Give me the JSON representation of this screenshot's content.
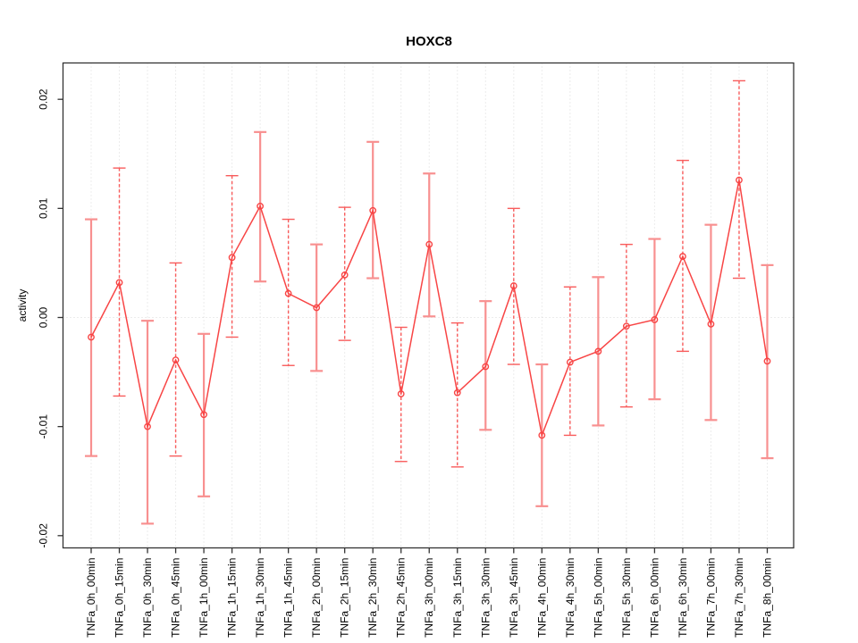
{
  "title": "HOXC8",
  "y_axis_label": "activity",
  "chart_data": {
    "type": "line",
    "subtype": "points-with-error-bars",
    "title": "HOXC8",
    "xlabel": "",
    "ylabel": "activity",
    "legend": "none",
    "grid": "vertical-dotted-at-each-category-plus-zero-line",
    "point_marker": "open-circle",
    "ylim": [
      -0.0212,
      0.0234
    ],
    "yticks": [
      {
        "value": -0.02,
        "label": "-0.02"
      },
      {
        "value": -0.01,
        "label": "-0.01"
      },
      {
        "value": 0.0,
        "label": "0.00"
      },
      {
        "value": 0.01,
        "label": "0.01"
      },
      {
        "value": 0.02,
        "label": "0.02"
      }
    ],
    "categories": [
      "TNFa_0h_00min",
      "TNFa_0h_15min",
      "TNFa_0h_30min",
      "TNFa_0h_45min",
      "TNFa_1h_00min",
      "TNFa_1h_15min",
      "TNFa_1h_30min",
      "TNFa_1h_45min",
      "TNFa_2h_00min",
      "TNFa_2h_15min",
      "TNFa_2h_30min",
      "TNFa_2h_45min",
      "TNFa_3h_00min",
      "TNFa_3h_15min",
      "TNFa_3h_30min",
      "TNFa_3h_45min",
      "TNFa_4h_00min",
      "TNFa_4h_30min",
      "TNFa_5h_00min",
      "TNFa_5h_30min",
      "TNFa_6h_00min",
      "TNFa_6h_30min",
      "TNFa_7h_00min",
      "TNFa_7h_30min",
      "TNFa_8h_00min"
    ],
    "values": [
      -0.0018,
      0.0032,
      -0.01,
      -0.0039,
      -0.0089,
      0.0055,
      0.0102,
      0.0022,
      0.0009,
      0.0039,
      0.0098,
      -0.007,
      0.0067,
      -0.0069,
      -0.0045,
      0.0029,
      -0.0108,
      -0.0041,
      -0.0031,
      -0.0008,
      -0.0002,
      0.0056,
      -0.0006,
      0.0126,
      -0.004
    ],
    "ci_lower": [
      -0.0127,
      -0.0072,
      -0.0189,
      -0.0127,
      -0.0164,
      -0.0018,
      0.0033,
      -0.0044,
      -0.0049,
      -0.0021,
      0.0036,
      -0.0132,
      0.0001,
      -0.0137,
      -0.0103,
      -0.0043,
      -0.0173,
      -0.0108,
      -0.0099,
      -0.0082,
      -0.0075,
      -0.0031,
      -0.0094,
      0.0036,
      -0.0129
    ],
    "ci_upper": [
      0.009,
      0.0137,
      -0.0003,
      0.005,
      -0.0015,
      0.013,
      0.017,
      0.009,
      0.0067,
      0.0101,
      0.0161,
      -0.0009,
      0.0132,
      -0.0005,
      0.0015,
      0.01,
      -0.0043,
      0.0028,
      0.0037,
      0.0067,
      0.0072,
      0.0144,
      0.0085,
      0.0217,
      0.0048
    ],
    "colors": {
      "line": "#f84545",
      "marker": "#f84545",
      "error_bar_solid": "#f89090",
      "error_bar_dashed": "#f85c5c",
      "gridline": "#d9d9d9",
      "axis_box": "#333333",
      "tick": "#333333"
    }
  }
}
